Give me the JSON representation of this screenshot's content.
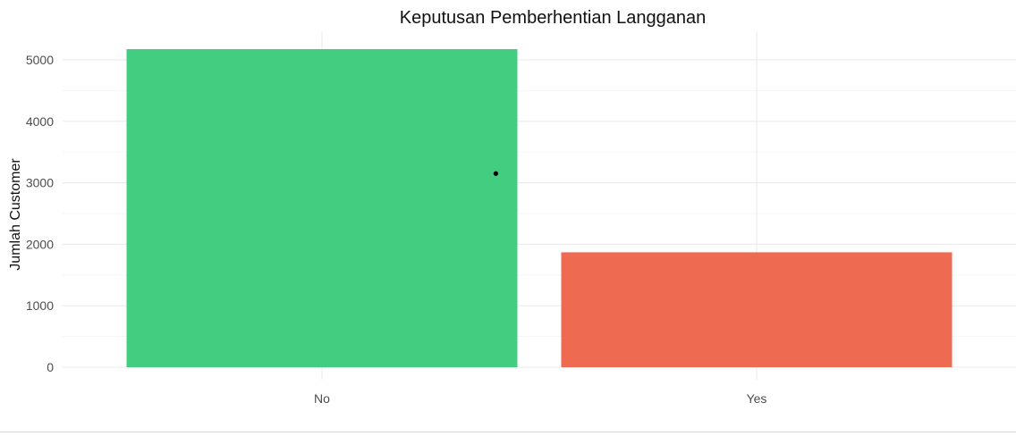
{
  "chart_data": {
    "type": "bar",
    "title": "Keputusan Pemberhentian Langganan",
    "xlabel": "",
    "ylabel": "Jumlah Customer",
    "categories": [
      "No",
      "Yes"
    ],
    "values": [
      5174,
      1869
    ],
    "ylim": [
      0,
      5174
    ],
    "yticks": [
      0,
      1000,
      2000,
      3000,
      4000,
      5000
    ],
    "bar_colors": [
      "#43cd80",
      "#ee6a50"
    ],
    "grid": true,
    "legend": "none",
    "annotation_point": {
      "x": 1.4,
      "y": 3150
    }
  }
}
